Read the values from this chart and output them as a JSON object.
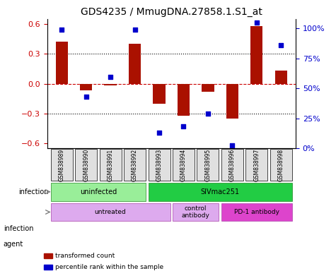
{
  "title": "GDS4235 / MmugDNA.27858.1.S1_at",
  "samples": [
    "GSM838989",
    "GSM838990",
    "GSM838991",
    "GSM838992",
    "GSM838993",
    "GSM838994",
    "GSM838995",
    "GSM838996",
    "GSM838997",
    "GSM838998"
  ],
  "bar_values": [
    0.42,
    -0.07,
    -0.02,
    0.4,
    -0.2,
    -0.32,
    -0.08,
    -0.35,
    0.58,
    0.13
  ],
  "dot_values": [
    92,
    40,
    55,
    92,
    12,
    17,
    27,
    2,
    97,
    80
  ],
  "bar_color": "#AA1100",
  "dot_color": "#0000CC",
  "ylim": [
    -0.65,
    0.65
  ],
  "y2lim": [
    0,
    108
  ],
  "yticks": [
    -0.6,
    -0.3,
    0.0,
    0.3,
    0.6
  ],
  "y2ticks": [
    0,
    25,
    50,
    75,
    100
  ],
  "y2tick_labels": [
    "0%",
    "25%",
    "50%",
    "75%",
    "100%"
  ],
  "hlines": [
    0.3,
    0.0,
    -0.3
  ],
  "hline_styles": [
    "dotted",
    "dashed",
    "dotted"
  ],
  "infection_labels": [
    {
      "text": "uninfected",
      "start": 0,
      "end": 4,
      "color": "#99EE99"
    },
    {
      "text": "SIVmac251",
      "start": 4,
      "end": 10,
      "color": "#22CC44"
    }
  ],
  "agent_labels": [
    {
      "text": "untreated",
      "start": 0,
      "end": 5,
      "color": "#DDAAEE"
    },
    {
      "text": "control\nantibody",
      "start": 5,
      "end": 7,
      "color": "#DDAAEE"
    },
    {
      "text": "PD-1 antibody",
      "start": 7,
      "end": 10,
      "color": "#DD44CC"
    }
  ],
  "row_labels": [
    "infection",
    "agent"
  ],
  "legend_items": [
    {
      "label": "transformed count",
      "color": "#AA1100",
      "marker": "s"
    },
    {
      "label": "percentile rank within the sample",
      "color": "#0000CC",
      "marker": "s"
    }
  ]
}
